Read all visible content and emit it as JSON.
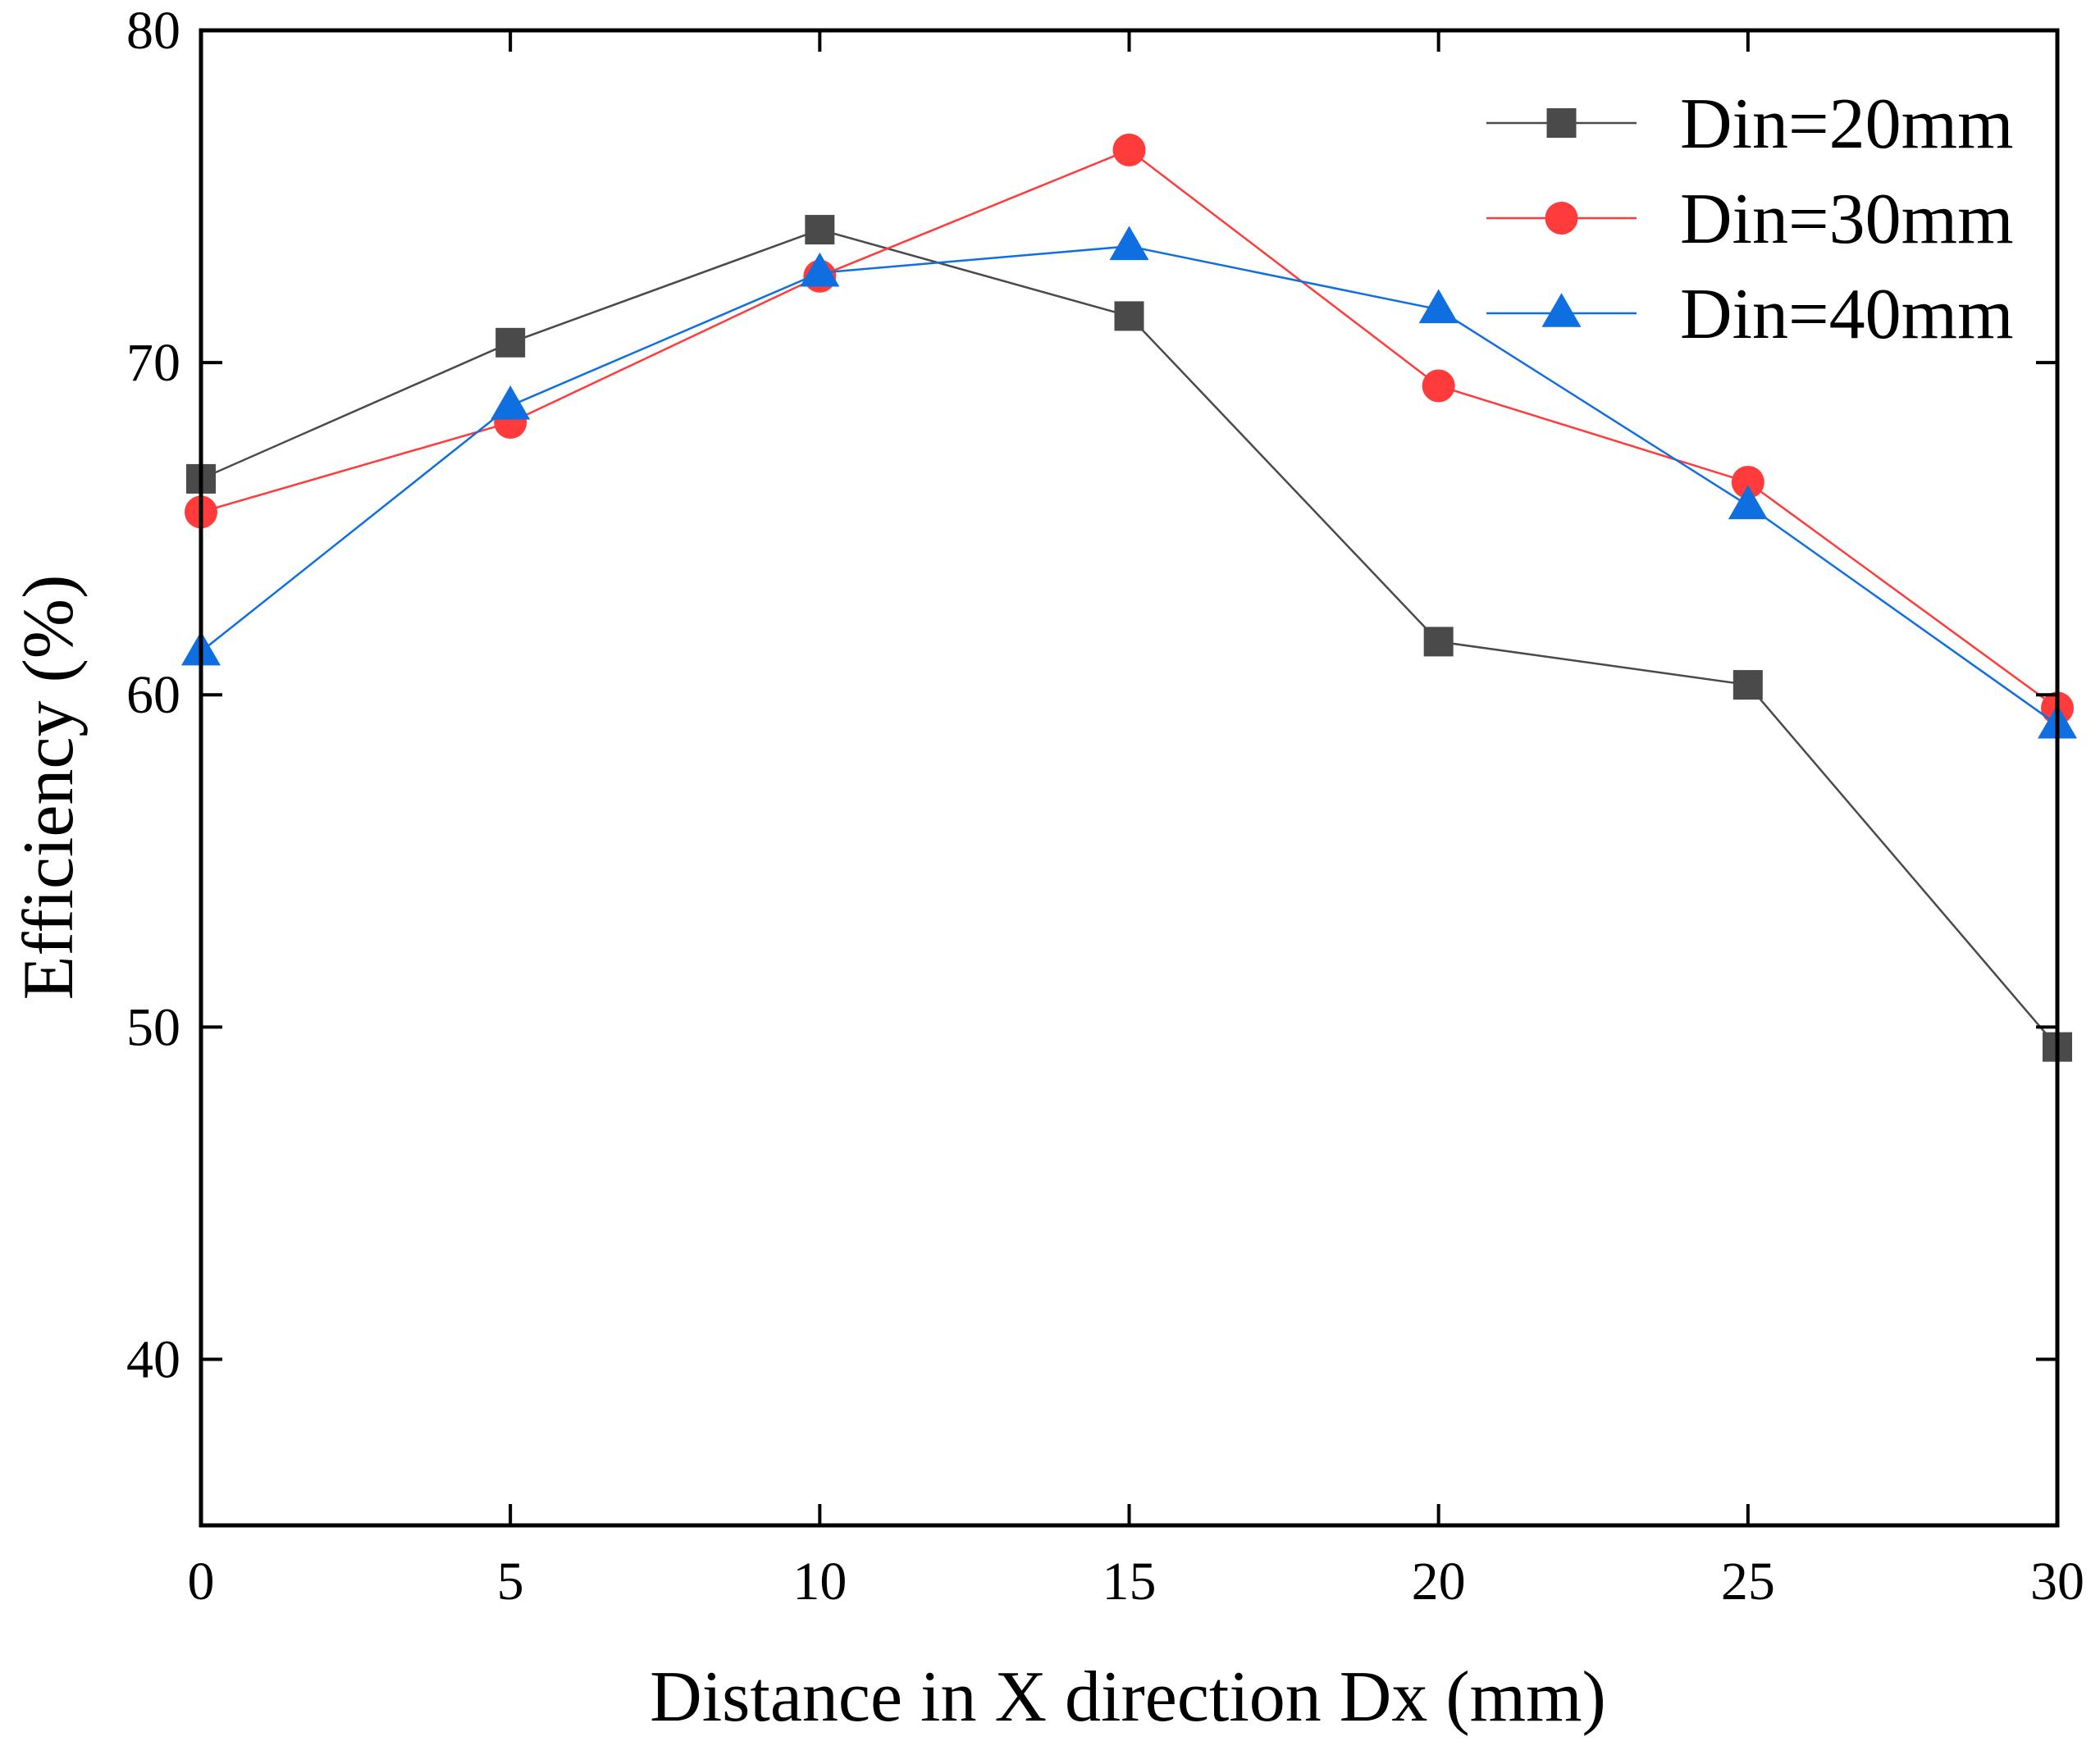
{
  "chart_data": {
    "type": "line",
    "title": "",
    "xlabel": "Distance in X direction Dx (mm)",
    "ylabel": "Efficiency (%)",
    "x": [
      0,
      5,
      10,
      15,
      20,
      25,
      30
    ],
    "xlim": [
      0,
      30
    ],
    "ylim": [
      35,
      80
    ],
    "xticks": [
      0,
      5,
      10,
      15,
      20,
      25,
      30
    ],
    "yticks": [
      40,
      50,
      60,
      70,
      80
    ],
    "grid": false,
    "legend_position": "top-right",
    "series": [
      {
        "name": "Din=20mm",
        "marker": "square",
        "color": "#4a4a4a",
        "values": [
          66.5,
          70.6,
          74.0,
          71.4,
          61.6,
          60.3,
          49.4
        ]
      },
      {
        "name": "Din=30mm",
        "marker": "circle",
        "color": "#ff3b3b",
        "values": [
          65.5,
          68.2,
          72.6,
          76.4,
          69.3,
          66.4,
          59.6
        ]
      },
      {
        "name": "Din=40mm",
        "marker": "triangle",
        "color": "#0f6fe0",
        "values": [
          61.3,
          68.7,
          72.7,
          73.5,
          71.6,
          65.7,
          59.1
        ]
      }
    ]
  }
}
